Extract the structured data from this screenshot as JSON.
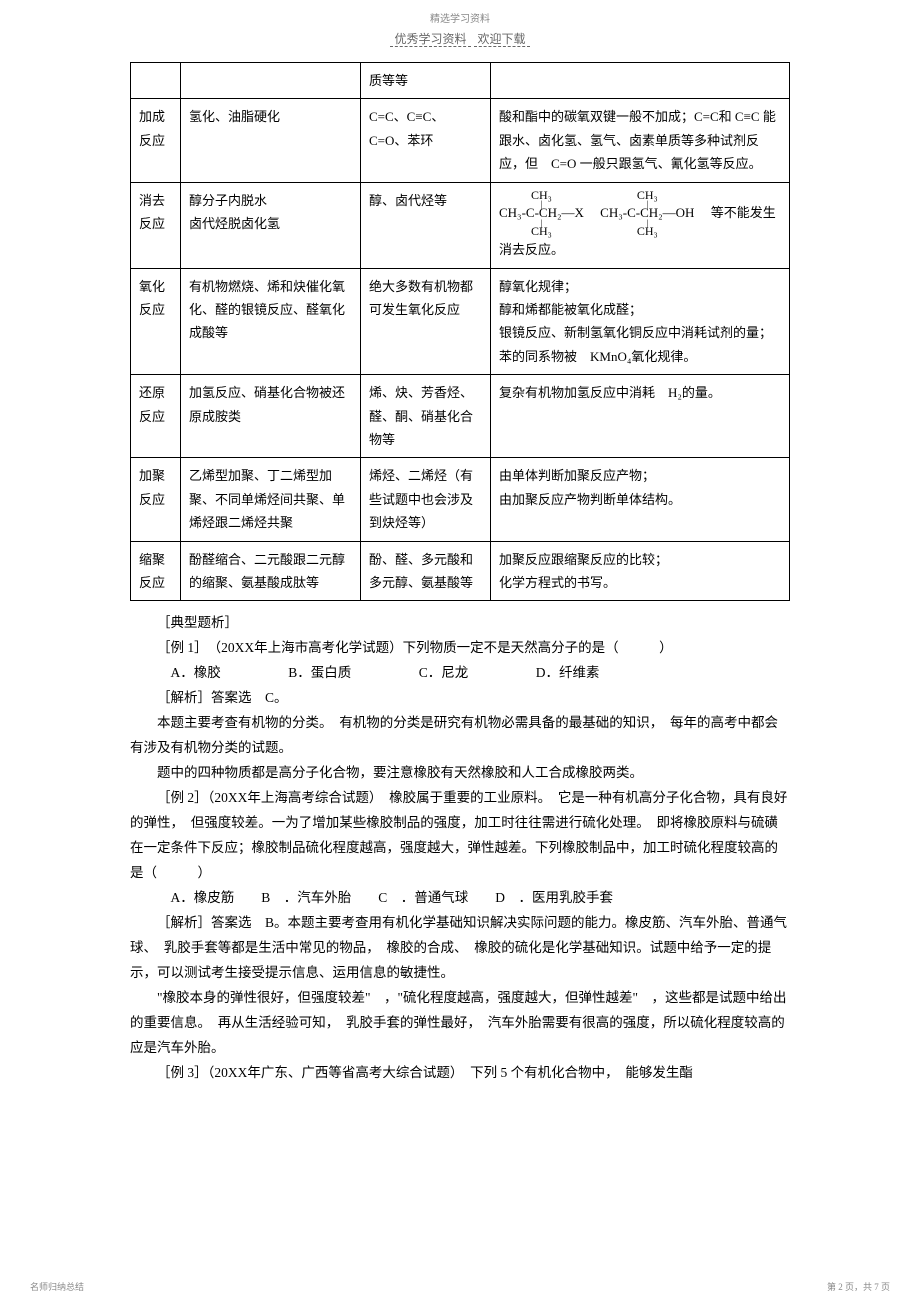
{
  "header": {
    "top": "精选学习资料",
    "sub_left": "优秀学习资料",
    "sub_right": "欢迎下载"
  },
  "table": {
    "rows": [
      {
        "c0": "",
        "c1": "",
        "c2": "质等等",
        "c3": ""
      },
      {
        "c0": "加成反应",
        "c1": "氢化、油脂硬化",
        "c2": "C=C、C≡C、C=O、苯环",
        "c3": "酸和酯中的碳氧双键一般不加成；C=C和 C≡C 能跟水、卤化氢、氢气、卤素单质等多种试剂反应，但　C=O 一般只跟氢气、氰化氢等反应。"
      },
      {
        "c0": "消去反应",
        "c1": "醇分子内脱水\n卤代烃脱卤化氢",
        "c2": "醇、卤代烃等",
        "c3_prefix": "",
        "c3_suffix": "　等不能发生消去反应。"
      },
      {
        "c0": "氧化反应",
        "c1": "有机物燃烧、烯和炔催化氧化、醛的银镜反应、醛氧化成酸等",
        "c2": "绝大多数有机物都可发生氧化反应",
        "c3": "醇氧化规律；\n醇和烯都能被氧化成醛；\n银镜反应、新制氢氧化铜反应中消耗试剂的量；\n苯的同系物被　KMnO₄氧化规律。"
      },
      {
        "c0": "还原反应",
        "c1": "加氢反应、硝基化合物被还原成胺类",
        "c2": "烯、炔、芳香烃、醛、酮、硝基化合物等",
        "c3": "复杂有机物加氢反应中消耗　H₂的量。"
      },
      {
        "c0": "加聚反应",
        "c1": "乙烯型加聚、丁二烯型加聚、不同单烯烃间共聚、单烯烃跟二烯烃共聚",
        "c2": "烯烃、二烯烃（有些试题中也会涉及到炔烃等）",
        "c3": "由单体判断加聚反应产物；\n由加聚反应产物判断单体结构。"
      },
      {
        "c0": "缩聚反应",
        "c1": "酚醛缩合、二元酸跟二元醇的缩聚、氨基酸成肽等",
        "c2": "酚、醛、多元酸和多元醇、氨基酸等",
        "c3": "加聚反应跟缩聚反应的比较；\n化学方程式的书写。"
      }
    ]
  },
  "body_text": {
    "p1": "［典型题析］",
    "p2": "［例 1］　（20XX年上海市高考化学试题）下列物质一定不是天然高分子的是（　　　）",
    "p3": "A．橡胶　　　　　B．蛋白质　　　　　C．尼龙　　　　　D．纤维素",
    "p4": "［解析］答案选　C。",
    "p5": "本题主要考查有机物的分类。　有机物的分类是研究有机物必需具备的最基础的知识，　每年的高考中都会有涉及有机物分类的试题。",
    "p6": "题中的四种物质都是高分子化合物，要注意橡胶有天然橡胶和人工合成橡胶两类。",
    "p7": "［例 2］（20XX年上海高考综合试题）　橡胶属于重要的工业原料。　它是一种有机高分子化合物，具有良好的弹性，　但强度较差。一为了增加某些橡胶制品的强度，加工时往往需进行硫化处理。　即将橡胶原料与硫磺在一定条件下反应；橡胶制品硫化程度越高，强度越大，弹性越差。下列橡胶制品中，加工时硫化程度较高的是（　　　）",
    "p8": "A．橡皮筋　　B　．汽车外胎　　C　．普通气球　　D　．医用乳胶手套",
    "p9": "［解析］答案选　B。本题主要考查用有机化学基础知识解决实际问题的能力。橡皮筋、汽车外胎、普通气球、　乳胶手套等都是生活中常见的物品，　橡胶的合成、　橡胶的硫化是化学基础知识。试题中给予一定的提示，可以测试考生接受提示信息、运用信息的敏捷性。",
    "p10": "\"橡胶本身的弹性很好，但强度较差\"　，\"硫化程度越高，强度越大，但弹性越差\"　，这些都是试题中给出的重要信息。　再从生活经验可知，　乳胶手套的弹性最好，　汽车外胎需要有很高的强度，所以硫化程度较高的应是汽车外胎。",
    "p11": "［例 3］（20XX年广东、广西等省高考大综合试题）　下列 5 个有机化合物中，　能够发生酯"
  },
  "footer": {
    "left": "名师归纳总结",
    "right": "第 2 页，共 7 页"
  },
  "chem": {
    "ch3": "CH₃",
    "left_mid": "CH₃-C-CH₂—X",
    "right_mid": "CH₃-C-CH₂—OH"
  }
}
